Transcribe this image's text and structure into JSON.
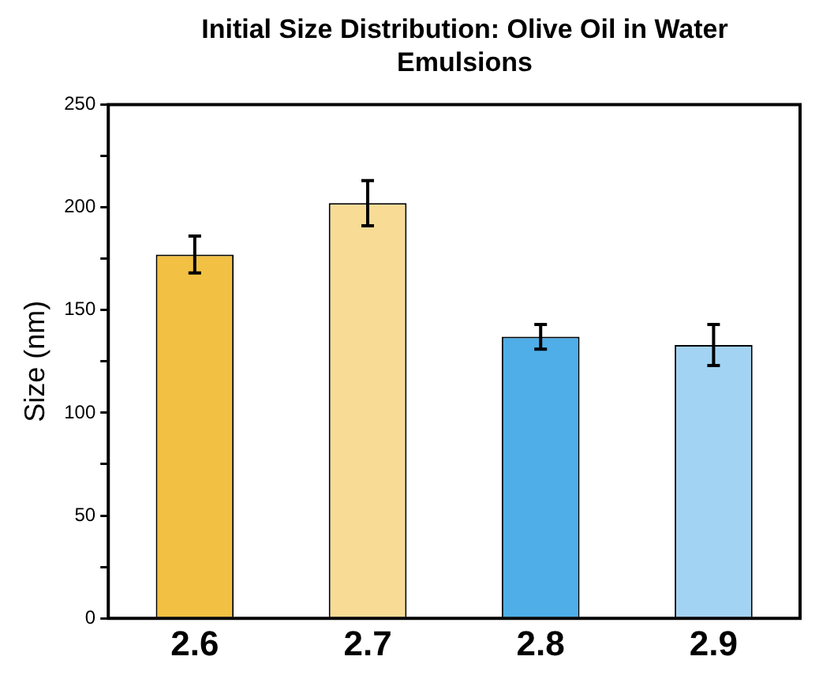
{
  "chart_data": {
    "type": "bar",
    "title": "Initial Size Distribution: Olive Oil in Water Emulsions",
    "ylabel": "Size (nm)",
    "categories": [
      "2.6",
      "2.7",
      "2.8",
      "2.9"
    ],
    "values": [
      177,
      202,
      137,
      133
    ],
    "colors": [
      "#f2c043",
      "#f8dc96",
      "#4faee8",
      "#a3d3f3"
    ],
    "errors": [
      9,
      11,
      6,
      10
    ],
    "ylim": [
      0,
      250
    ],
    "yticks": [
      0,
      {
        "value": 25,
        "label": null
      },
      50,
      {
        "value": 75,
        "label": null
      },
      100,
      {
        "value": 125,
        "label": null
      },
      150,
      {
        "value": 175,
        "label": null
      },
      200,
      {
        "value": 225,
        "label": null
      },
      250
    ],
    "grid": false,
    "legend": false
  }
}
